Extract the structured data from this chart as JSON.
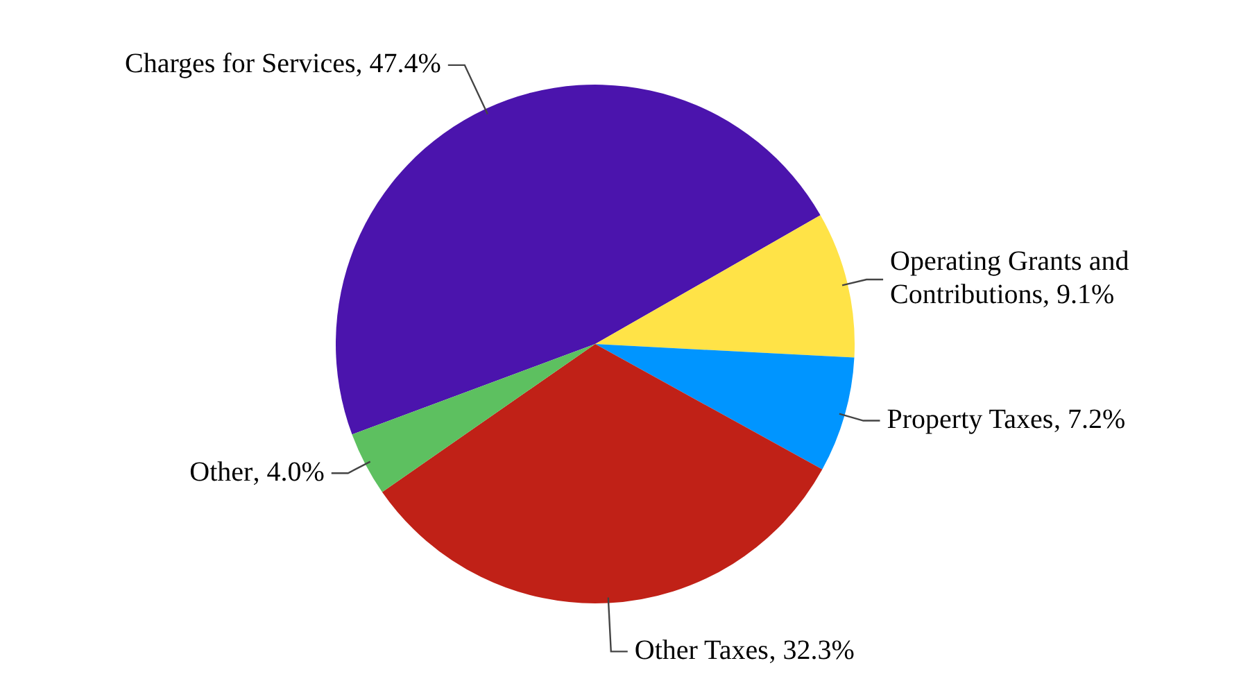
{
  "chart_data": {
    "type": "pie",
    "categories": [
      "Charges for Services",
      "Operating Grants and Contributions",
      "Property Taxes",
      "Other Taxes",
      "Other"
    ],
    "values": [
      47.4,
      9.1,
      7.2,
      32.3,
      4.0
    ],
    "colors": [
      "#4b14ad",
      "#ffe347",
      "#0095ff",
      "#c02117",
      "#5dc060"
    ],
    "value_labels": [
      ", 47.4%",
      ", 9.1%",
      ", 7.2%",
      ", 32.3%",
      ", 4.0%"
    ],
    "legend": false
  }
}
